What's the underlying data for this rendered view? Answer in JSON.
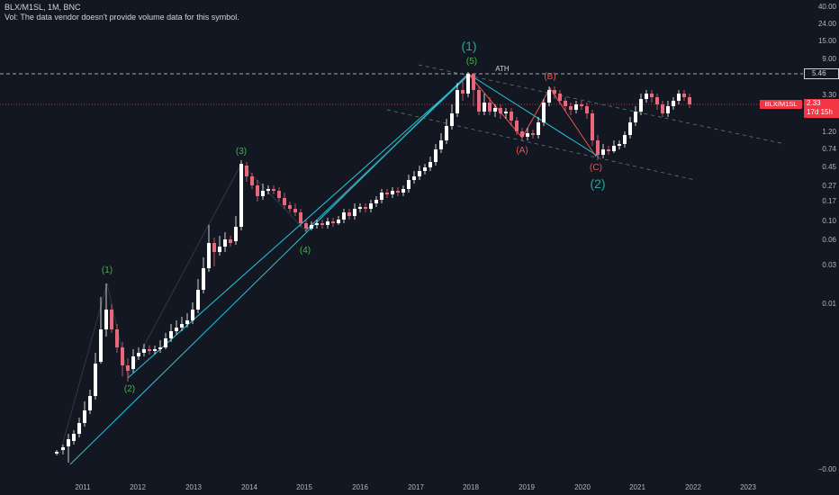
{
  "header": {
    "title": "BLX/M1SL, 1M, BNC",
    "volume_note": "Vol: The data vendor doesn't provide volume data for this symbol."
  },
  "colors": {
    "background": "#131722",
    "up": "#ffffff",
    "down": "#e8677a",
    "wave_line": "#26c6da",
    "wave_green": "#4caf50",
    "wave_red": "#ef5350",
    "channel": "#5d7a7a",
    "price_line": "#f23645"
  },
  "price_tags": {
    "symbol": "BLX/M1SL",
    "last_price": "2.33",
    "countdown": "17d 15h",
    "ath_value": "5.46"
  },
  "labels": {
    "ath": "ATH",
    "wave_1_big": "(1)",
    "wave_2_big": "(2)",
    "w1": "(1)",
    "w2": "(2)",
    "w3": "(3)",
    "w4": "(4)",
    "w5": "(5)",
    "wa": "(A)",
    "wb": "(B)",
    "wc": "(C)"
  },
  "chart_data": {
    "type": "candlestick",
    "scale": "log",
    "y_ticks": [
      "40.00",
      "24.00",
      "15.00",
      "9.00",
      "5.46",
      "3.30",
      "2.33",
      "1.20",
      "0.74",
      "0.45",
      "0.27",
      "0.17",
      "0.10",
      "0.06",
      "0.03",
      "0.01",
      "−0.00"
    ],
    "x_ticks": [
      "2011",
      "2012",
      "2013",
      "2014",
      "2015",
      "2016",
      "2017",
      "2018",
      "2019",
      "2020",
      "2021",
      "2022",
      "2023"
    ],
    "ath": 5.46,
    "last": 2.33,
    "waves": {
      "(1)": {
        "date": "2011.45",
        "value": 0.016
      },
      "(2)": {
        "date": "2011.8",
        "value": 0.0033
      },
      "(3)": {
        "date": "2013.9",
        "value": 0.5
      },
      "(4)": {
        "date": "2015.0",
        "value": 0.062
      },
      "(5)": {
        "date": "2017.95",
        "value": 5.46
      },
      "(A)": {
        "date": "2018.95",
        "value": 0.93
      },
      "(B)": {
        "date": "2019.45",
        "value": 3.4
      },
      "(C)": {
        "date": "2020.3",
        "value": 0.55
      }
    }
  }
}
